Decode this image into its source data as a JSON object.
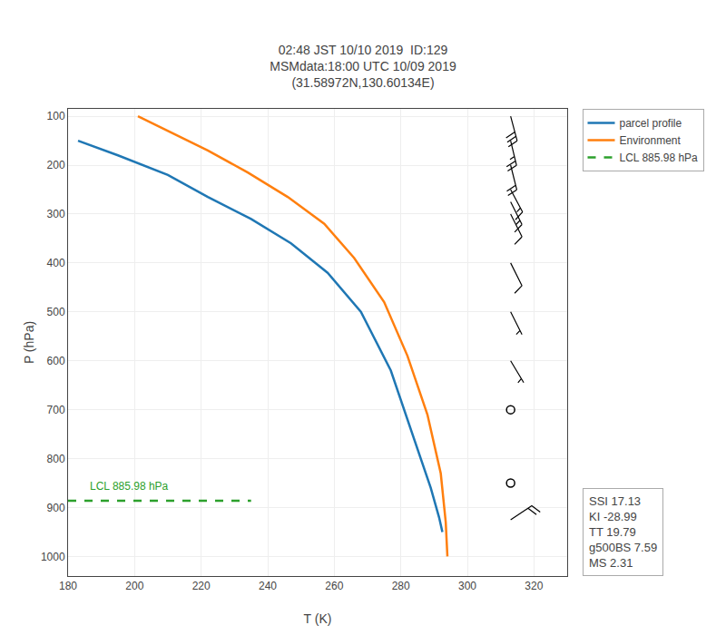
{
  "chart_data": {
    "type": "line",
    "title": "02:48 JST 10/10 2019  ID:129\nMSMdata:18:00 UTC 10/09 2019\n(31.58972N,130.60134E)",
    "xlabel": "T (K)",
    "ylabel": "P (hPa)",
    "xlim": [
      180,
      330
    ],
    "ylim": [
      1040,
      85
    ],
    "xticks": [
      180,
      200,
      220,
      240,
      260,
      280,
      300,
      320
    ],
    "yticks": [
      100,
      200,
      300,
      400,
      500,
      600,
      700,
      800,
      900,
      1000
    ],
    "grid": true,
    "legend": "right",
    "series": [
      {
        "name": "parcel profile",
        "color": "#1f77b4",
        "line_style": "solid",
        "x": [
          183.0,
          195.0,
          210.0,
          222.0,
          235.0,
          247.0,
          258.0,
          268.0,
          277.0,
          284.0,
          289.0,
          291.5,
          292.5
        ],
        "values": [
          150.0,
          180.0,
          220.0,
          265.0,
          310.0,
          360.0,
          420.0,
          500.0,
          620.0,
          760.0,
          860.0,
          920.0,
          950.0
        ]
      },
      {
        "name": "Environment",
        "color": "#ff7f0e",
        "line_style": "solid",
        "x": [
          201.0,
          210.0,
          222.0,
          234.0,
          246.0,
          257.0,
          266.0,
          275.0,
          282.0,
          288.0,
          292.0,
          293.5,
          294.0
        ],
        "values": [
          100.0,
          130.0,
          170.0,
          215.0,
          265.0,
          320.0,
          390.0,
          480.0,
          590.0,
          710.0,
          830.0,
          930.0,
          1000.0
        ]
      },
      {
        "name": "LCL 885.98 hPa",
        "color": "#2ca02c",
        "line_style": "dashed",
        "x": [
          180,
          235
        ],
        "values": [
          885.98,
          885.98
        ]
      }
    ],
    "annotations": [
      {
        "text": "LCL 885.98 hPa",
        "x": 186,
        "y": 873.98,
        "color": "#2ca02c"
      },
      {
        "text": "SSI 17.13\nKI -28.99\nTT 19.79\ng500BS 7.59\nMS 2.31"
      }
    ],
    "wind_barbs": {
      "x": 313.0,
      "color": "black",
      "pressure": [
        100,
        150,
        200,
        250,
        275,
        300,
        400,
        500,
        600,
        700,
        850,
        925
      ],
      "u": [
        -8,
        -6,
        -5,
        -8,
        -6,
        -5,
        -4,
        -3,
        -3,
        0,
        0,
        -18
      ],
      "v": [
        30,
        25,
        20,
        15,
        12,
        10,
        8,
        6,
        5,
        0,
        0,
        -12
      ]
    }
  }
}
